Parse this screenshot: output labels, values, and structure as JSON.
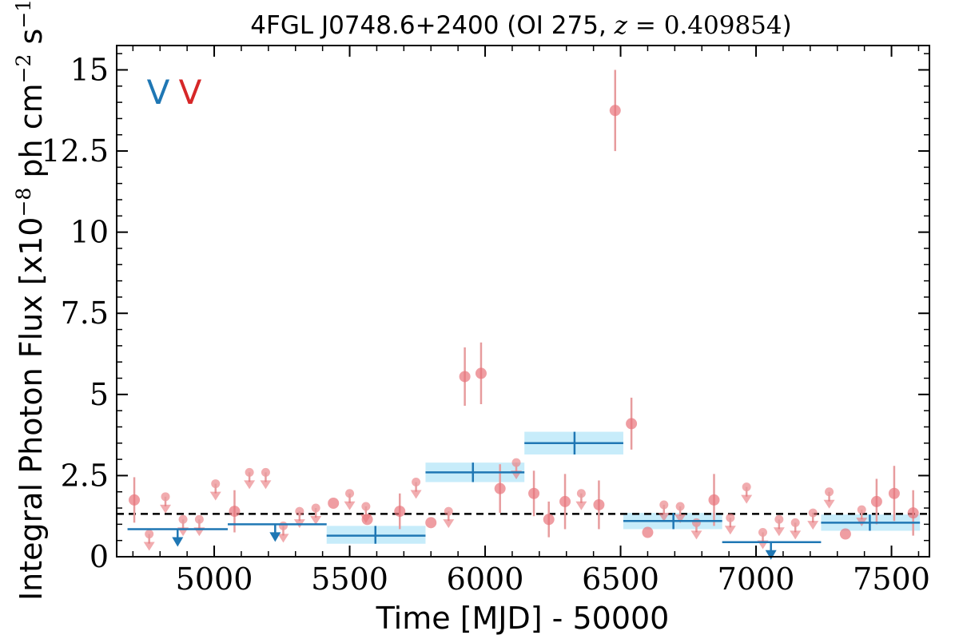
{
  "chart_data": {
    "type": "scatter",
    "title_parts": {
      "source": "4FGL J0748.6+2400 (OI 275, ",
      "z_symbol": "z",
      "z_value": " = 0.409854",
      "close": ")"
    },
    "xlabel": "Time [MJD] - 50000",
    "ylabel_parts": {
      "main": "Integral Photon Flux [x10",
      "exp1": "−8",
      "mid": " ph cm",
      "exp2": "−2",
      "mid2": " s",
      "exp3": "−1",
      "close": "]"
    },
    "xlim": [
      4640,
      7640
    ],
    "ylim": [
      0,
      15.75
    ],
    "x_ticks": [
      5000,
      5500,
      6000,
      6500,
      7000,
      7500
    ],
    "x_tick_labels": [
      "5000",
      "5500",
      "6000",
      "6500",
      "7000",
      "7500"
    ],
    "y_ticks": [
      0,
      2.5,
      5,
      7.5,
      10,
      12.5,
      15
    ],
    "y_tick_labels": [
      "0",
      "2.5",
      "5",
      "7.5",
      "10",
      "12.5",
      "15"
    ],
    "grid": false,
    "legend_markers": [
      {
        "label": "V",
        "color": "#1f77b4"
      },
      {
        "label": "V",
        "color": "#d62728"
      }
    ],
    "average_flux": 1.32,
    "colors": {
      "monthly": "#e8747a",
      "monthly_errbar": "#e79c9e",
      "yearly": "#1f77b4",
      "yearly_band": "#c7ecfa",
      "average_line": "#000000"
    },
    "series": [
      {
        "name": "",
        "kind": "monthly_detections",
        "points": [
          {
            "x": 4705,
            "y": 1.75,
            "err": 0.7
          },
          {
            "x": 5075,
            "y": 1.4,
            "err": 0.65
          },
          {
            "x": 5440,
            "y": 1.65,
            "err": 0
          },
          {
            "x": 5565,
            "y": 1.15,
            "err": 0
          },
          {
            "x": 5685,
            "y": 1.4,
            "err": 0.55
          },
          {
            "x": 5800,
            "y": 1.05,
            "err": 0
          },
          {
            "x": 5925,
            "y": 5.55,
            "err": 0.9
          },
          {
            "x": 5985,
            "y": 5.65,
            "err": 0.95
          },
          {
            "x": 6055,
            "y": 2.1,
            "err": 0.75
          },
          {
            "x": 6180,
            "y": 1.95,
            "err": 0.7
          },
          {
            "x": 6235,
            "y": 1.15,
            "err": 0.55
          },
          {
            "x": 6295,
            "y": 1.7,
            "err": 0.85
          },
          {
            "x": 6420,
            "y": 1.6,
            "err": 0.75
          },
          {
            "x": 6480,
            "y": 13.75,
            "err": 1.25
          },
          {
            "x": 6540,
            "y": 4.1,
            "err": 0.8
          },
          {
            "x": 6600,
            "y": 0.75,
            "err": 0
          },
          {
            "x": 6845,
            "y": 1.75,
            "err": 0.8
          },
          {
            "x": 7330,
            "y": 0.7,
            "err": 0
          },
          {
            "x": 7445,
            "y": 1.7,
            "err": 0.7
          },
          {
            "x": 7510,
            "y": 1.95,
            "err": 0.85
          },
          {
            "x": 7580,
            "y": 1.35,
            "err": 0.7
          }
        ]
      },
      {
        "name": "",
        "kind": "monthly_upper_limits",
        "points": [
          {
            "x": 4760,
            "y": 0.7
          },
          {
            "x": 4820,
            "y": 1.85
          },
          {
            "x": 4885,
            "y": 1.15
          },
          {
            "x": 4945,
            "y": 1.15
          },
          {
            "x": 5005,
            "y": 2.25
          },
          {
            "x": 5130,
            "y": 2.6
          },
          {
            "x": 5190,
            "y": 2.6
          },
          {
            "x": 5255,
            "y": 0.95
          },
          {
            "x": 5315,
            "y": 1.4
          },
          {
            "x": 5375,
            "y": 1.5
          },
          {
            "x": 5500,
            "y": 1.95
          },
          {
            "x": 5560,
            "y": 1.55
          },
          {
            "x": 5745,
            "y": 2.3
          },
          {
            "x": 5865,
            "y": 1.4
          },
          {
            "x": 6115,
            "y": 2.9
          },
          {
            "x": 6355,
            "y": 1.95
          },
          {
            "x": 6660,
            "y": 1.6
          },
          {
            "x": 6720,
            "y": 1.55
          },
          {
            "x": 6780,
            "y": 1.05
          },
          {
            "x": 6905,
            "y": 1.2
          },
          {
            "x": 6965,
            "y": 2.15
          },
          {
            "x": 7025,
            "y": 0.75
          },
          {
            "x": 7085,
            "y": 1.15
          },
          {
            "x": 7145,
            "y": 1.05
          },
          {
            "x": 7210,
            "y": 1.35
          },
          {
            "x": 7270,
            "y": 2.0
          },
          {
            "x": 7390,
            "y": 1.45
          }
        ]
      },
      {
        "name": "",
        "kind": "yearly_detections",
        "points": [
          {
            "x": 5595,
            "x0": 5415,
            "x1": 5780,
            "y": 0.65,
            "y0": 0.4,
            "y1": 0.95
          },
          {
            "x": 5955,
            "x0": 5780,
            "x1": 6145,
            "y": 2.6,
            "y0": 2.3,
            "y1": 2.9
          },
          {
            "x": 6330,
            "x0": 6145,
            "x1": 6510,
            "y": 3.5,
            "y0": 3.15,
            "y1": 3.85
          },
          {
            "x": 6695,
            "x0": 6510,
            "x1": 6875,
            "y": 1.1,
            "y0": 0.85,
            "y1": 1.35
          },
          {
            "x": 7420,
            "x0": 7240,
            "x1": 7605,
            "y": 1.05,
            "y0": 0.8,
            "y1": 1.3
          }
        ]
      },
      {
        "name": "",
        "kind": "yearly_upper_limits",
        "points": [
          {
            "x": 4865,
            "x0": 4680,
            "x1": 5050,
            "y": 0.85
          },
          {
            "x": 5225,
            "x0": 5050,
            "x1": 5415,
            "y": 1.0
          },
          {
            "x": 7055,
            "x0": 6875,
            "x1": 7240,
            "y": 0.45
          }
        ]
      }
    ]
  }
}
